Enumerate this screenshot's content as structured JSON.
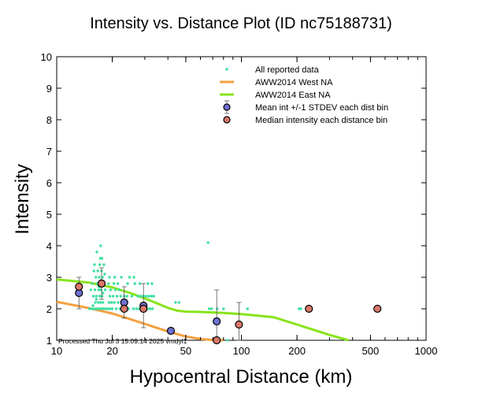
{
  "chart_data": {
    "type": "scatter",
    "title": "Intensity vs. Distance Plot (ID nc75188731)",
    "xlabel": "Hypocentral Distance (km)",
    "ylabel": "Intensity",
    "xscale": "log",
    "xlim": [
      10,
      1000
    ],
    "ylim": [
      1,
      10
    ],
    "x_ticks": [
      10,
      20,
      50,
      100,
      200,
      500,
      1000
    ],
    "y_ticks": [
      1,
      2,
      3,
      4,
      5,
      6,
      7,
      8,
      9,
      10
    ],
    "footer": "Processed Thu Jul  3 15:09:14 2025 vmdyl1",
    "legend": {
      "position": "top-right",
      "entries": [
        {
          "label": "All reported data",
          "marker": "dot",
          "color": "#3fe0a0"
        },
        {
          "label": "AWW2014 West NA",
          "marker": "line",
          "color": "#f5a040"
        },
        {
          "label": "AWW2014 East NA",
          "marker": "line",
          "color": "#88e41c"
        },
        {
          "label": "Mean int +/-1 STDEV each dist bin",
          "marker": "circle",
          "color": "#6f6fcf"
        },
        {
          "label": "Median intensity each distance bin",
          "marker": "circle",
          "color": "#d9776a"
        }
      ]
    },
    "series": [
      {
        "name": "AWW2014 West NA",
        "type": "line",
        "color": "#f5a040",
        "x": [
          10,
          15,
          20,
          25,
          30,
          40,
          50,
          60,
          70,
          80
        ],
        "y": [
          2.22,
          2.02,
          1.85,
          1.67,
          1.52,
          1.28,
          1.12,
          1.04,
          1.01,
          1.0
        ]
      },
      {
        "name": "AWW2014 East NA",
        "type": "line",
        "color": "#88e41c",
        "x": [
          10,
          15,
          20,
          25,
          30,
          35,
          40,
          45,
          50,
          60,
          80,
          100,
          150,
          200,
          300,
          380
        ],
        "y": [
          2.93,
          2.83,
          2.68,
          2.5,
          2.33,
          2.17,
          2.03,
          1.94,
          1.91,
          1.9,
          1.87,
          1.83,
          1.73,
          1.5,
          1.17,
          1.0
        ]
      },
      {
        "name": "All reported data",
        "type": "scatter",
        "color": "#3fe0a0",
        "x": [
          15,
          15.5,
          16,
          16,
          16.5,
          17,
          17,
          17.5,
          18,
          18,
          18.5,
          16.2,
          16.8,
          17.3,
          17.8,
          15.8,
          16.4,
          17.1,
          17.6,
          15.3,
          16.1,
          16.9,
          17.4,
          18.3,
          15.6,
          16.6,
          17.2,
          17.9,
          16.3,
          17.0,
          17.7,
          15.9,
          16.7,
          17.5,
          16.0,
          17.1,
          18.0,
          17.2,
          17.6,
          16.5,
          17.3,
          15.7,
          16.4,
          17.8,
          16.9,
          17.4,
          18.2,
          19,
          19.5,
          20,
          21,
          22,
          19.2,
          19.8,
          20.5,
          21.5,
          22.5,
          23,
          19.4,
          20.2,
          21.2,
          22.2,
          19.6,
          20.8,
          21.8,
          19.1,
          20.4,
          21.4,
          23.2,
          19.3,
          20.6,
          22.4,
          23.5,
          24.5,
          26,
          27,
          28,
          29,
          24,
          25.5,
          27.5,
          28.5,
          24.2,
          26.5,
          28.2,
          24.8,
          26.2,
          29.5,
          31,
          32,
          33,
          30.5,
          31.5,
          32.5,
          33.5,
          31.2,
          32.8,
          44,
          46,
          66,
          67,
          69,
          74,
          75,
          80,
          84,
          108,
          205,
          210,
          530,
          540
        ],
        "y": [
          2.0,
          2.0,
          2.0,
          2.0,
          2.0,
          2.0,
          2.0,
          2.0,
          2.0,
          2.0,
          2.0,
          2.2,
          2.2,
          2.2,
          2.2,
          2.4,
          2.4,
          2.4,
          2.4,
          2.6,
          2.6,
          2.6,
          2.6,
          2.6,
          2.8,
          2.8,
          2.8,
          2.8,
          3.0,
          3.0,
          3.0,
          3.2,
          3.2,
          3.2,
          3.4,
          3.4,
          3.4,
          3.6,
          3.6,
          3.8,
          4.0,
          2.1,
          2.3,
          2.5,
          2.7,
          2.9,
          3.1,
          2.0,
          2.0,
          2.0,
          2.0,
          2.0,
          2.2,
          2.2,
          2.2,
          2.2,
          2.2,
          2.0,
          2.4,
          2.4,
          2.4,
          2.4,
          2.6,
          2.6,
          2.6,
          2.8,
          2.8,
          2.8,
          2.4,
          3.0,
          3.0,
          3.0,
          2.0,
          2.0,
          2.0,
          2.0,
          2.0,
          2.0,
          2.4,
          2.4,
          2.4,
          2.4,
          2.8,
          2.8,
          2.8,
          3.0,
          3.0,
          2.4,
          2.0,
          2.0,
          2.0,
          2.4,
          2.4,
          2.4,
          2.4,
          2.8,
          2.8,
          2.2,
          2.2,
          4.1,
          2.0,
          2.0,
          2.0,
          1.0,
          2.0,
          1.0,
          2.0,
          2.0,
          2.0,
          2.0,
          2.0
        ]
      },
      {
        "name": "Mean int +/-1 STDEV each dist bin",
        "type": "errorbar",
        "color": "#6f6fcf",
        "x": [
          13.2,
          17.5,
          23.2,
          29.5,
          41.5,
          73.5
        ],
        "y": [
          2.5,
          2.8,
          2.2,
          2.1,
          1.3,
          1.6
        ],
        "yerr": [
          0.5,
          0.5,
          0.5,
          0.7,
          0.0,
          1.0
        ]
      },
      {
        "name": "Median intensity each distance bin",
        "type": "scatter",
        "color": "#d9776a",
        "x": [
          13.2,
          17.5,
          23.2,
          29.5,
          73.5,
          97,
          232,
          545
        ],
        "y": [
          2.7,
          2.8,
          2.0,
          2.0,
          1.0,
          1.5,
          2.0,
          2.0
        ],
        "yerr": [
          0,
          0,
          0,
          0,
          0,
          0.7,
          0,
          0
        ]
      }
    ]
  }
}
